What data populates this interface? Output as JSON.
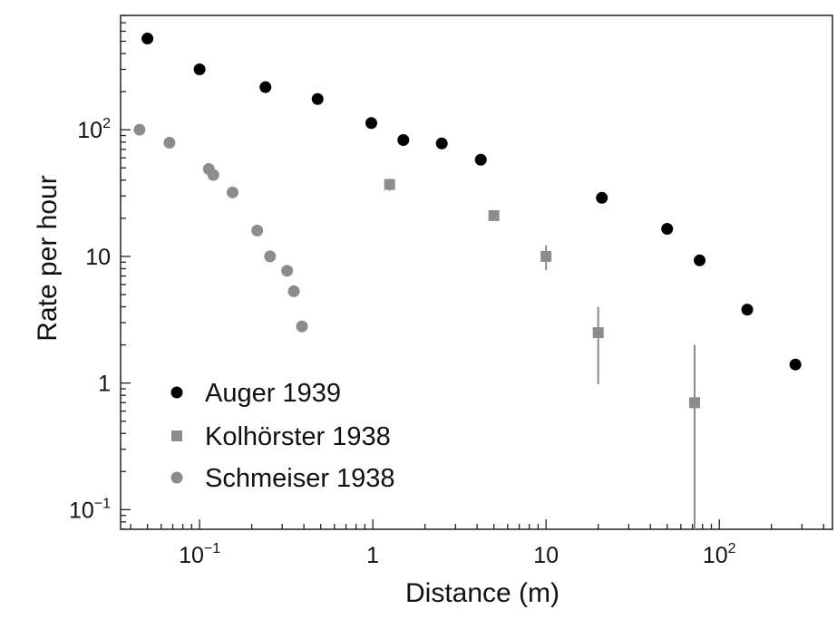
{
  "chart_data": {
    "type": "scatter",
    "xlabel": "Distance (m)",
    "ylabel": "Rate per hour",
    "xscale": "log",
    "yscale": "log",
    "xlim": [
      0.035,
      450
    ],
    "ylim": [
      0.07,
      800
    ],
    "grid": false,
    "legend_position": "bottom-left",
    "x_ticks": [
      {
        "value": 0.1,
        "base": "10",
        "exp": "−1"
      },
      {
        "value": 1,
        "base": "1",
        "exp": ""
      },
      {
        "value": 10,
        "base": "10",
        "exp": ""
      },
      {
        "value": 100,
        "base": "10",
        "exp": "2"
      }
    ],
    "y_ticks": [
      {
        "value": 0.1,
        "base": "10",
        "exp": "−1"
      },
      {
        "value": 1,
        "base": "1",
        "exp": ""
      },
      {
        "value": 10,
        "base": "10",
        "exp": ""
      },
      {
        "value": 100,
        "base": "10",
        "exp": "2"
      }
    ],
    "series": [
      {
        "name": "Auger 1939",
        "marker": "circle",
        "color": "#000000",
        "x": [
          0.05,
          0.1,
          0.24,
          0.48,
          0.98,
          1.5,
          2.5,
          4.2,
          21,
          50,
          77,
          145,
          275
        ],
        "y": [
          525,
          300,
          217,
          175,
          113,
          83,
          78,
          58,
          29,
          16.5,
          9.3,
          3.8,
          1.4
        ],
        "yerr_low": [],
        "yerr_high": []
      },
      {
        "name": "Kolhörster 1938",
        "marker": "square",
        "color": "#8c8c8c",
        "x": [
          1.25,
          5,
          10,
          20,
          72
        ],
        "y": [
          37,
          21,
          10,
          2.5,
          0.7
        ],
        "yerr_low": [
          33,
          21,
          7.8,
          0.98,
          0.07
        ],
        "yerr_high": [
          41,
          21,
          12.2,
          4.0,
          2.0
        ]
      },
      {
        "name": "Schmeiser 1938",
        "marker": "circle",
        "color": "#8c8c8c",
        "x": [
          0.045,
          0.067,
          0.113,
          0.12,
          0.155,
          0.215,
          0.255,
          0.32,
          0.35,
          0.39
        ],
        "y": [
          100,
          79,
          49,
          44,
          32,
          16,
          10,
          7.7,
          5.3,
          2.8
        ],
        "yerr_low": [],
        "yerr_high": []
      }
    ]
  }
}
